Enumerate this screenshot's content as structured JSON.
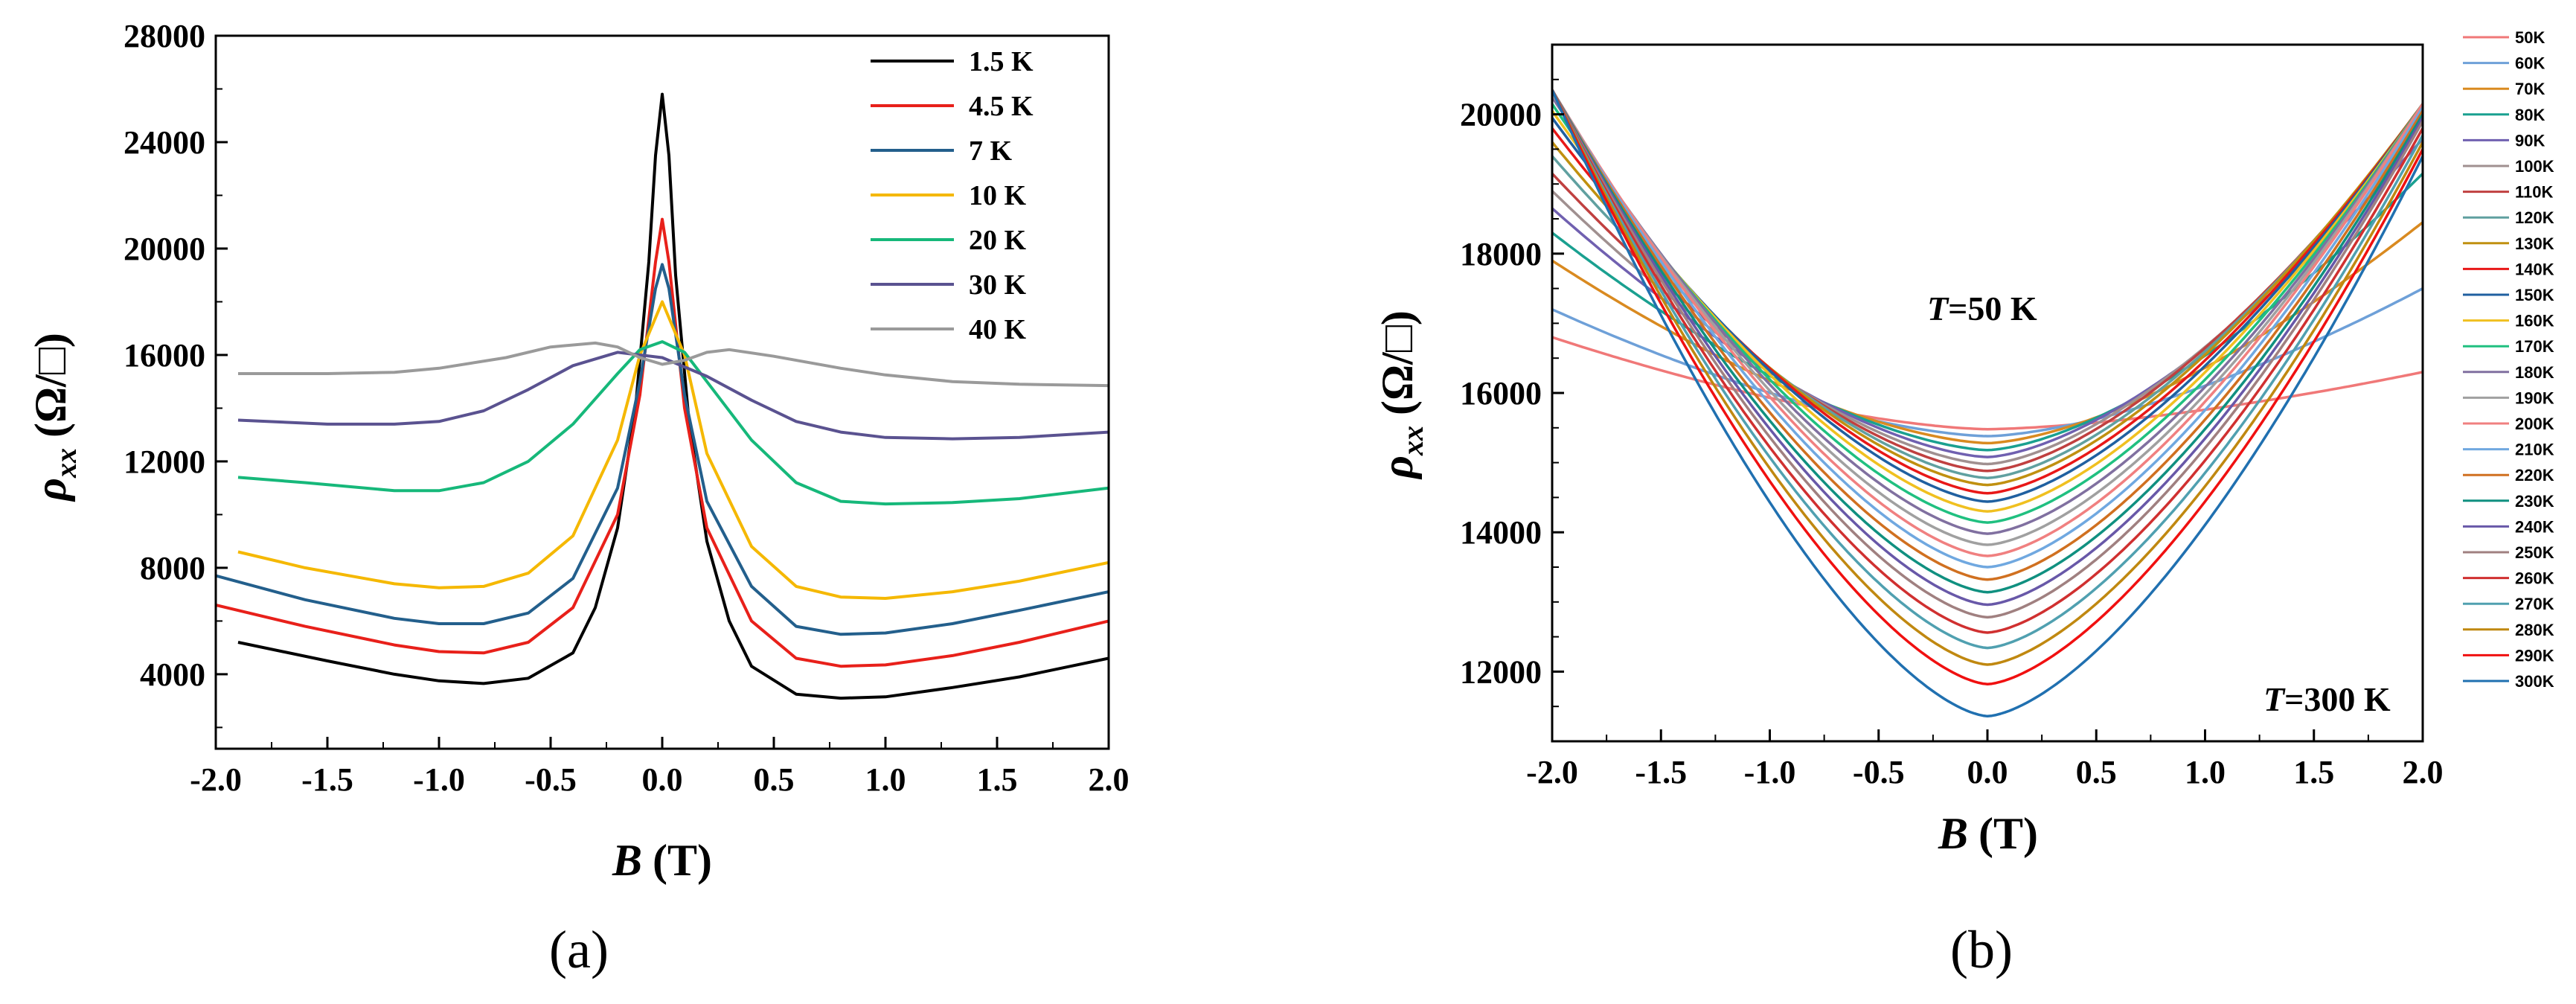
{
  "chart_data": [
    {
      "panel": "a",
      "type": "line",
      "caption": "(a)",
      "xlabel": "B (T)",
      "xlabel_var": "B",
      "xlabel_unit": "(T)",
      "ylabel_var": "ρ",
      "ylabel_sub": "xx",
      "ylabel_unit": "(Ω/□)",
      "xlim": [
        -2.0,
        2.0
      ],
      "ylim": [
        1200,
        28000
      ],
      "xticks": [
        "-2.0",
        "-1.5",
        "-1.0",
        "-0.5",
        "0.0",
        "0.5",
        "1.0",
        "1.5",
        "2.0"
      ],
      "yticks": [
        "4000",
        "8000",
        "12000",
        "16000",
        "20000",
        "24000",
        "28000"
      ],
      "legend_position": "top-right",
      "series": [
        {
          "name": "1.5 K",
          "color": "#000000",
          "x": [
            -1.9,
            -1.5,
            -1.2,
            -1.0,
            -0.8,
            -0.6,
            -0.4,
            -0.3,
            -0.2,
            -0.12,
            -0.06,
            -0.03,
            0.0,
            0.03,
            0.06,
            0.12,
            0.2,
            0.3,
            0.4,
            0.6,
            0.8,
            1.0,
            1.3,
            1.6,
            2.0
          ],
          "y": [
            5200,
            4500,
            4000,
            3750,
            3650,
            3850,
            4800,
            6500,
            9500,
            14000,
            19500,
            23500,
            25800,
            23500,
            19000,
            13500,
            9000,
            6000,
            4300,
            3250,
            3100,
            3150,
            3500,
            3900,
            4600
          ]
        },
        {
          "name": "4.5 K",
          "color": "#e8201a",
          "x": [
            -2.0,
            -1.6,
            -1.2,
            -1.0,
            -0.8,
            -0.6,
            -0.4,
            -0.2,
            -0.1,
            -0.03,
            0.0,
            0.03,
            0.1,
            0.2,
            0.4,
            0.6,
            0.8,
            1.0,
            1.3,
            1.6,
            2.0
          ],
          "y": [
            6600,
            5800,
            5100,
            4850,
            4800,
            5200,
            6500,
            10000,
            14500,
            19500,
            21100,
            19500,
            14000,
            9500,
            6000,
            4600,
            4300,
            4350,
            4700,
            5200,
            6000
          ]
        },
        {
          "name": "7 K",
          "color": "#235f8c",
          "x": [
            -2.0,
            -1.6,
            -1.2,
            -1.0,
            -0.8,
            -0.6,
            -0.4,
            -0.2,
            -0.1,
            -0.03,
            0.0,
            0.03,
            0.1,
            0.2,
            0.4,
            0.6,
            0.8,
            1.0,
            1.3,
            1.6,
            2.0
          ],
          "y": [
            7700,
            6800,
            6100,
            5900,
            5900,
            6300,
            7600,
            11000,
            15000,
            18500,
            19400,
            18500,
            14500,
            10500,
            7300,
            5800,
            5500,
            5550,
            5900,
            6400,
            7100
          ]
        },
        {
          "name": "10 K",
          "color": "#f5b800",
          "x": [
            -1.9,
            -1.6,
            -1.2,
            -1.0,
            -0.8,
            -0.6,
            -0.4,
            -0.2,
            -0.1,
            0.0,
            0.1,
            0.2,
            0.4,
            0.6,
            0.8,
            1.0,
            1.3,
            1.6,
            2.0
          ],
          "y": [
            8600,
            8000,
            7400,
            7250,
            7300,
            7800,
            9200,
            12800,
            16000,
            18000,
            16000,
            12300,
            8800,
            7300,
            6900,
            6850,
            7100,
            7500,
            8200
          ]
        },
        {
          "name": "20 K",
          "color": "#16b87a",
          "x": [
            -1.9,
            -1.6,
            -1.2,
            -1.0,
            -0.8,
            -0.6,
            -0.4,
            -0.2,
            -0.1,
            0.0,
            0.1,
            0.2,
            0.4,
            0.6,
            0.8,
            1.0,
            1.3,
            1.6,
            2.0
          ],
          "y": [
            11400,
            11200,
            10900,
            10900,
            11200,
            12000,
            13400,
            15300,
            16200,
            16500,
            16100,
            15000,
            12800,
            11200,
            10500,
            10400,
            10450,
            10600,
            11000
          ]
        },
        {
          "name": "30 K",
          "color": "#5a5290",
          "x": [
            -1.9,
            -1.5,
            -1.2,
            -1.0,
            -0.8,
            -0.6,
            -0.4,
            -0.2,
            0.0,
            0.2,
            0.4,
            0.6,
            0.8,
            1.0,
            1.3,
            1.6,
            2.0
          ],
          "y": [
            13550,
            13400,
            13400,
            13500,
            13900,
            14700,
            15600,
            16100,
            15900,
            15200,
            14300,
            13500,
            13100,
            12900,
            12850,
            12900,
            13100
          ]
        },
        {
          "name": "40 K",
          "color": "#9a9a9a",
          "x": [
            -1.9,
            -1.5,
            -1.2,
            -1.0,
            -0.7,
            -0.5,
            -0.3,
            -0.2,
            -0.1,
            0.0,
            0.1,
            0.2,
            0.3,
            0.5,
            0.8,
            1.0,
            1.3,
            1.6,
            2.0
          ],
          "y": [
            15300,
            15300,
            15350,
            15500,
            15900,
            16300,
            16450,
            16300,
            15900,
            15650,
            15800,
            16100,
            16200,
            15950,
            15500,
            15250,
            15000,
            14900,
            14850
          ]
        }
      ]
    },
    {
      "panel": "b",
      "type": "line",
      "caption": "(b)",
      "xlabel": "B (T)",
      "xlabel_var": "B",
      "xlabel_unit": "(T)",
      "ylabel_var": "ρ",
      "ylabel_sub": "xx",
      "ylabel_unit": "(Ω/□)",
      "xlim": [
        -2.0,
        2.0
      ],
      "ylim": [
        11000,
        21000
      ],
      "xticks": [
        "-2.0",
        "-1.5",
        "-1.0",
        "-0.5",
        "0.0",
        "0.5",
        "1.0",
        "1.5",
        "2.0"
      ],
      "yticks": [
        "12000",
        "14000",
        "16000",
        "18000",
        "20000"
      ],
      "annotations": [
        {
          "var": "T",
          "text": "=50 K",
          "at_data": [
            -0.3,
            17200
          ]
        },
        {
          "var": "T",
          "text": "=300 K",
          "at_data": [
            0.6,
            11500
          ]
        }
      ],
      "legend_position": "right, outside",
      "model_note": "Each curve approximated as rho(B) = min + (end - min) * |B/2|^p",
      "series": [
        {
          "name": "50K",
          "color": "#f07878",
          "min": 15480,
          "end_left": 16800,
          "end_right": 16300
        },
        {
          "name": "60K",
          "color": "#6ea0d8",
          "min": 15380,
          "end_left": 17200,
          "end_right": 17500
        },
        {
          "name": "70K",
          "color": "#d98a20",
          "min": 15280,
          "end_left": 17900,
          "end_right": 18450
        },
        {
          "name": "80K",
          "color": "#1aa090",
          "min": 15180,
          "end_left": 18300,
          "end_right": 19150
        },
        {
          "name": "90K",
          "color": "#7060b0",
          "min": 15080,
          "end_left": 18650,
          "end_right": 19650
        },
        {
          "name": "100K",
          "color": "#a09090",
          "min": 14980,
          "end_left": 18900,
          "end_right": 19900
        },
        {
          "name": "110K",
          "color": "#c04040",
          "min": 14880,
          "end_left": 19150,
          "end_right": 20050
        },
        {
          "name": "120K",
          "color": "#60a0a0",
          "min": 14780,
          "end_left": 19400,
          "end_right": 20100
        },
        {
          "name": "130K",
          "color": "#c09010",
          "min": 14680,
          "end_left": 19600,
          "end_right": 20150
        },
        {
          "name": "140K",
          "color": "#e81818",
          "min": 14560,
          "end_left": 19800,
          "end_right": 20150
        },
        {
          "name": "150K",
          "color": "#2060a0",
          "min": 14440,
          "end_left": 19950,
          "end_right": 20150
        },
        {
          "name": "160K",
          "color": "#f0c020",
          "min": 14300,
          "end_left": 20050,
          "end_right": 20150
        },
        {
          "name": "170K",
          "color": "#20c080",
          "min": 14140,
          "end_left": 20150,
          "end_right": 20150
        },
        {
          "name": "180K",
          "color": "#8070a0",
          "min": 13980,
          "end_left": 20250,
          "end_right": 20150
        },
        {
          "name": "190K",
          "color": "#a0a0a0",
          "min": 13820,
          "end_left": 20300,
          "end_right": 20150
        },
        {
          "name": "200K",
          "color": "#f08080",
          "min": 13660,
          "end_left": 20350,
          "end_right": 20150
        },
        {
          "name": "210K",
          "color": "#70a8e0",
          "min": 13500,
          "end_left": 20350,
          "end_right": 20100
        },
        {
          "name": "220K",
          "color": "#d07020",
          "min": 13320,
          "end_left": 20350,
          "end_right": 20050
        },
        {
          "name": "230K",
          "color": "#109080",
          "min": 13140,
          "end_left": 20350,
          "end_right": 20000
        },
        {
          "name": "240K",
          "color": "#6858a8",
          "min": 12960,
          "end_left": 20350,
          "end_right": 19950
        },
        {
          "name": "250K",
          "color": "#a08080",
          "min": 12780,
          "end_left": 20350,
          "end_right": 19900
        },
        {
          "name": "260K",
          "color": "#d03030",
          "min": 12560,
          "end_left": 20350,
          "end_right": 19800
        },
        {
          "name": "270K",
          "color": "#50a0b0",
          "min": 12340,
          "end_left": 20350,
          "end_right": 19700
        },
        {
          "name": "280K",
          "color": "#c08810",
          "min": 12100,
          "end_left": 20350,
          "end_right": 19600
        },
        {
          "name": "290K",
          "color": "#f01010",
          "min": 11820,
          "end_left": 20350,
          "end_right": 19500
        },
        {
          "name": "300K",
          "color": "#2070b0",
          "min": 11360,
          "end_left": 20350,
          "end_right": 19400
        }
      ]
    }
  ]
}
